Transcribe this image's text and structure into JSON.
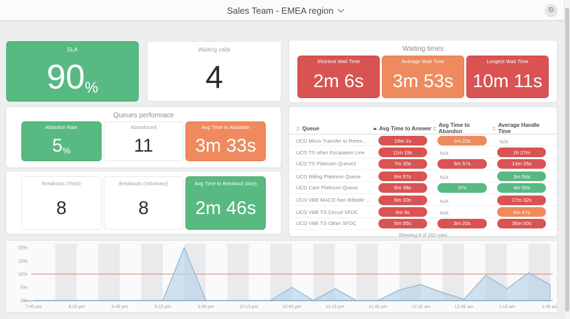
{
  "header": {
    "title": "Sales Team - EMEA region",
    "dropdown_icon": "chevron-down",
    "settings_icon": "gear"
  },
  "colors": {
    "green": "#58b983",
    "red": "#d95353",
    "orange": "#ee8a5e",
    "chart_area": "#b9d3e9",
    "chart_line": "#8fb4d4",
    "threshold_line": "#dd8377"
  },
  "cards": {
    "sla": {
      "label": "SLA",
      "value": "90",
      "unit": "%",
      "color": "green"
    },
    "waiting_calls": {
      "label": "Waiting calls",
      "value": "4",
      "color": "white"
    }
  },
  "waiting_times": {
    "title": "Waiting times",
    "cards": [
      {
        "label": "Shortest Wait Time",
        "value": "2m 6s",
        "color": "red"
      },
      {
        "label": "Average Wait Time",
        "value": "3m 53s",
        "color": "orange"
      },
      {
        "label": "Longest Wait Time",
        "value": "10m 11s",
        "color": "red"
      }
    ]
  },
  "queues_performance": {
    "title": "Queues performace",
    "cards": [
      {
        "label": "Abandon Rate",
        "value": "5",
        "unit": "%",
        "color": "green"
      },
      {
        "label": "Abandoned",
        "value": "11",
        "color": "white"
      },
      {
        "label": "Avg Time to Abandon",
        "value": "3m 33s",
        "color": "orange"
      }
    ]
  },
  "breakouts": {
    "cards": [
      {
        "label": "Breakouts (Total)",
        "value": "8",
        "color": "white"
      },
      {
        "label": "Breakouts (Voluntary)",
        "value": "8",
        "color": "white"
      },
      {
        "label": "Avg Time to Breakout (Any)",
        "value": "2m 46s",
        "color": "green"
      }
    ]
  },
  "table": {
    "headers": [
      {
        "label": "Queue",
        "sort": "none"
      },
      {
        "label": "Avg Time to Answer",
        "sort": "asc"
      },
      {
        "label": "Avg Time to Abandon",
        "sort": "none"
      },
      {
        "label": "Average Handle Time",
        "sort": "none"
      }
    ],
    "rows": [
      {
        "queue": "UCD Micro Transfer to Reten...",
        "cells": [
          {
            "text": "19m 1s",
            "color": "red"
          },
          {
            "text": "1m 22s",
            "color": "orange"
          },
          {
            "text": "N/A",
            "color": "none"
          }
        ]
      },
      {
        "queue": "UCD TS other Escalation Line",
        "cells": [
          {
            "text": "11m 19s",
            "color": "red"
          },
          {
            "text": "N/A",
            "color": "none"
          },
          {
            "text": "1h 27m",
            "color": "red"
          }
        ]
      },
      {
        "queue": "UCD TS Platinum Queue2",
        "cells": [
          {
            "text": "7m 30s",
            "color": "red"
          },
          {
            "text": "5m 57s",
            "color": "red"
          },
          {
            "text": "13m 26s",
            "color": "red"
          }
        ]
      },
      {
        "queue": "UCD Billing Platinum Queue",
        "cells": [
          {
            "text": "6m 57s",
            "color": "red"
          },
          {
            "text": "N/A",
            "color": "none"
          },
          {
            "text": "3m 54s",
            "color": "green"
          }
        ]
      },
      {
        "queue": "UCD Care Platinum Queue",
        "cells": [
          {
            "text": "6m 38s",
            "color": "red"
          },
          {
            "text": "37s",
            "color": "green"
          },
          {
            "text": "4m 50s",
            "color": "green"
          }
        ]
      },
      {
        "queue": "UCD VBE MACD Non Billable ...",
        "cells": [
          {
            "text": "6m 10s",
            "color": "red"
          },
          {
            "text": "N/A",
            "color": "none"
          },
          {
            "text": "17m 32s",
            "color": "red"
          }
        ]
      },
      {
        "queue": "UCD VBE TS Circuit SFDC",
        "cells": [
          {
            "text": "6m 9s",
            "color": "red"
          },
          {
            "text": "N/A",
            "color": "none"
          },
          {
            "text": "6m 47s",
            "color": "orange"
          }
        ]
      },
      {
        "queue": "UCD VBE TS Other SFDC",
        "cells": [
          {
            "text": "5m 55s",
            "color": "red"
          },
          {
            "text": "3m 20s",
            "color": "red"
          },
          {
            "text": "36m 50s",
            "color": "red"
          }
        ]
      }
    ],
    "footer": "Showing 8 of 262 rows"
  },
  "chart_data": {
    "type": "area",
    "title": "",
    "xlabel": "",
    "ylabel": "",
    "x": [
      "7:45 pm",
      "8:00 pm",
      "8:15 pm",
      "8:30 pm",
      "8:45 pm",
      "9:00 pm",
      "9:15 pm",
      "9:30 pm",
      "9:45 pm",
      "10:00 pm",
      "10:15 pm",
      "10:30 pm",
      "10:45 pm",
      "11:00 pm",
      "11:15 pm",
      "11:30 pm",
      "11:45 pm",
      "12:00 am",
      "12:15 am",
      "12:30 am",
      "12:45 am",
      "1:00 am",
      "1:15 am",
      "1:30 am",
      "1:45 am"
    ],
    "values": [
      0,
      0,
      0,
      0,
      0,
      0,
      0,
      20,
      0,
      0,
      0,
      0,
      5,
      0,
      4.5,
      0,
      0,
      4,
      6,
      3,
      0.5,
      9.5,
      4.5,
      10.5,
      6
    ],
    "x_tick_labels": [
      "7:45 pm",
      "8:15 pm",
      "8:45 pm",
      "9:15 pm",
      "9:45 pm",
      "10:15 pm",
      "10:45 pm",
      "11:15 pm",
      "11:45 pm",
      "12:15 am",
      "12:45 am",
      "1:15 am",
      "1:45 am"
    ],
    "y_tick_labels": [
      "0%",
      "5%",
      "10%",
      "15%",
      "20%"
    ],
    "ylim": [
      0,
      20
    ],
    "threshold": {
      "value": 10
    },
    "grid": "vertical-stripes",
    "legend": "none"
  }
}
